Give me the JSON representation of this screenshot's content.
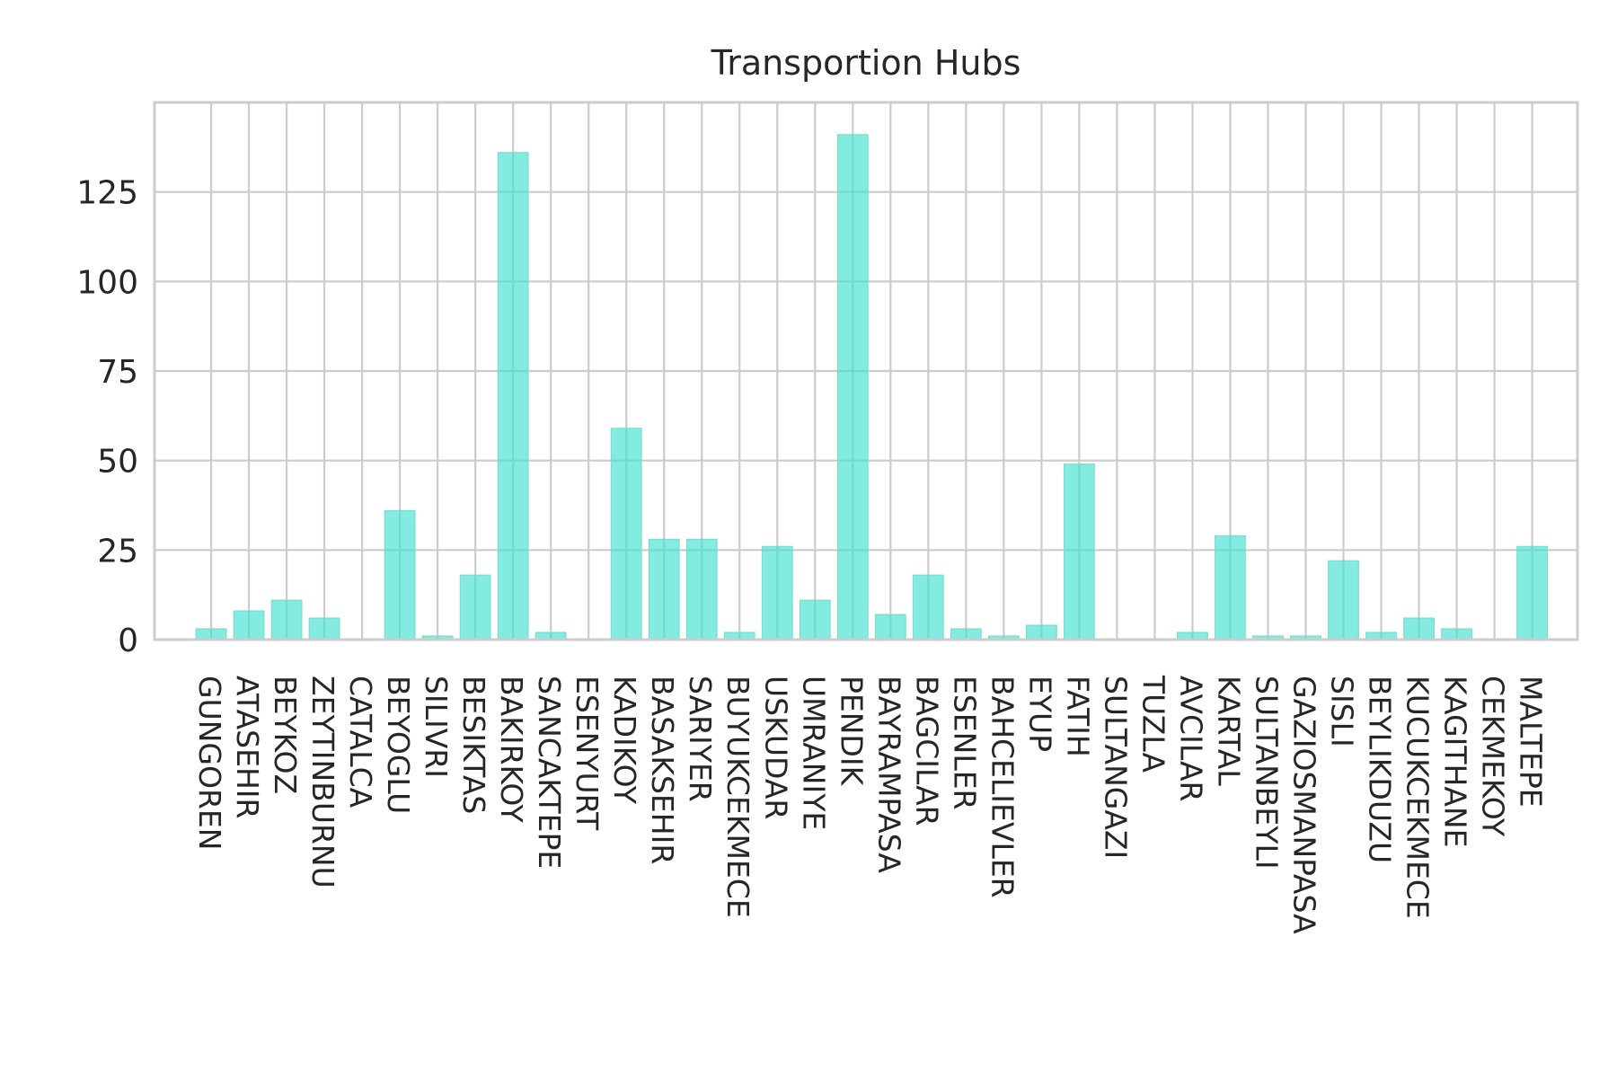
{
  "chart_data": {
    "type": "bar",
    "title": "Transportion Hubs",
    "xlabel": "",
    "ylabel": "",
    "ylim": [
      0,
      150
    ],
    "yticks": [
      0,
      25,
      50,
      75,
      100,
      125
    ],
    "grid": true,
    "categories": [
      "GUNGOREN",
      "ATASEHIR",
      "BEYKOZ",
      "ZEYTINBURNU",
      "CATALCA",
      "BEYOGLU",
      "SILIVRI",
      "BESIKTAS",
      "BAKIRKOY",
      "SANCAKTEPE",
      "ESENYURT",
      "KADIKOY",
      "BASAKSEHIR",
      "SARIYER",
      "BUYUKCEKMECE",
      "USKUDAR",
      "UMRANIYE",
      "PENDIK",
      "BAYRAMPASA",
      "BAGCILAR",
      "ESENLER",
      "BAHCELIEVLER",
      "EYUP",
      "FATIH",
      "SULTANGAZI",
      "TUZLA",
      "AVCILAR",
      "KARTAL",
      "SULTANBEYLI",
      "GAZIOSMANPASA",
      "SISLI",
      "BEYLIKDUZU",
      "KUCUKCEKMECE",
      "KAGITHANE",
      "CEKMEKOY",
      "MALTEPE"
    ],
    "values": [
      3,
      8,
      11,
      6,
      0,
      36,
      1,
      18,
      136,
      2,
      0,
      59,
      28,
      28,
      2,
      26,
      11,
      141,
      7,
      18,
      3,
      1,
      4,
      49,
      0,
      0,
      2,
      29,
      1,
      1,
      22,
      2,
      6,
      3,
      0,
      26
    ],
    "colors": {
      "bar_fill": "#40e0d0",
      "bar_opacity": 0.65,
      "bar_stroke": "#7ddbd0",
      "grid": "#cccccc",
      "text": "#262626",
      "background": "#ffffff"
    }
  }
}
